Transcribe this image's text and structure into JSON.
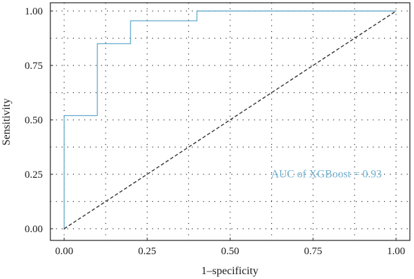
{
  "chart_data": {
    "type": "line",
    "title": "",
    "xlabel": "1–specificity",
    "ylabel": "Sensitivity",
    "xlim": [
      0,
      1
    ],
    "ylim": [
      0,
      1
    ],
    "x_ticks": [
      0,
      0.25,
      0.5,
      0.75,
      1
    ],
    "y_ticks": [
      0,
      0.25,
      0.5,
      0.75,
      1
    ],
    "x_tick_labels": [
      "0.00",
      "0.25",
      "0.50",
      "0.75",
      "1.00"
    ],
    "y_tick_labels": [
      "0.00",
      "0.25",
      "0.50",
      "0.75",
      "1.00"
    ],
    "grid": "dotted",
    "legend": "none",
    "series": [
      {
        "style": "step",
        "color": "#6fb0cf",
        "x": [
          0,
          0,
          0.1,
          0.1,
          0.2,
          0.2,
          0.4,
          0.4,
          1
        ],
        "y": [
          0,
          0.52,
          0.52,
          0.85,
          0.85,
          0.955,
          0.955,
          1,
          1
        ]
      },
      {
        "style": "dashed",
        "color": "#333333",
        "x": [
          0,
          1
        ],
        "y": [
          0,
          1
        ]
      }
    ],
    "annotations": [
      {
        "text": "AUC of XGBoost =  0.93",
        "x": 0.79,
        "y": 0.255,
        "color": "#6fb0cf"
      }
    ]
  }
}
